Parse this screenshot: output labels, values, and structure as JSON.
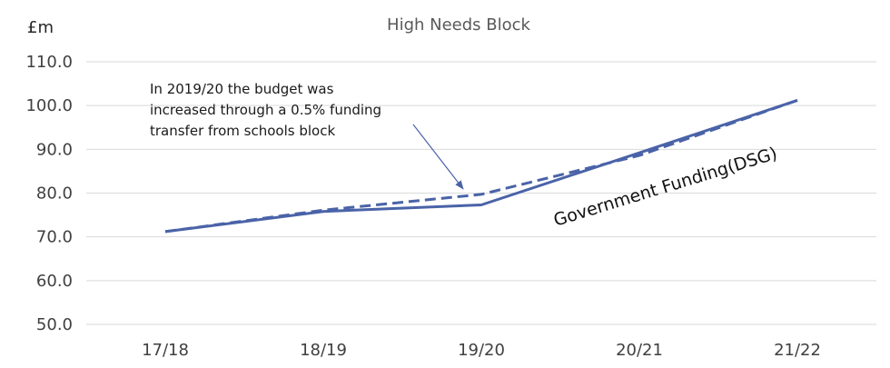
{
  "chart_data": {
    "type": "line",
    "title": "High Needs Block",
    "ylabel": "£m",
    "xlabel": "",
    "categories": [
      "17/18",
      "18/19",
      "19/20",
      "20/21",
      "21/22"
    ],
    "ylim": [
      50,
      110
    ],
    "yticks": [
      "50.0",
      "60.0",
      "70.0",
      "80.0",
      "90.0",
      "100.0",
      "110.0"
    ],
    "grid": true,
    "series": [
      {
        "name": "Government Funding(DSG)",
        "style": "solid",
        "color": "#4a63a8",
        "values": [
          71.2,
          75.8,
          77.3,
          89.2,
          101.2
        ]
      },
      {
        "name": "",
        "style": "dashed",
        "color": "#4a63a8",
        "values": [
          71.2,
          76.1,
          79.7,
          88.6,
          101.2
        ]
      }
    ],
    "annotation": {
      "lines": [
        "In 2019/20 the budget was",
        "increased through a 0.5% funding",
        "transfer from schools block"
      ],
      "points_to": {
        "x": "19/20",
        "y": 79.7
      }
    },
    "series_label": "Government Funding(DSG)"
  }
}
